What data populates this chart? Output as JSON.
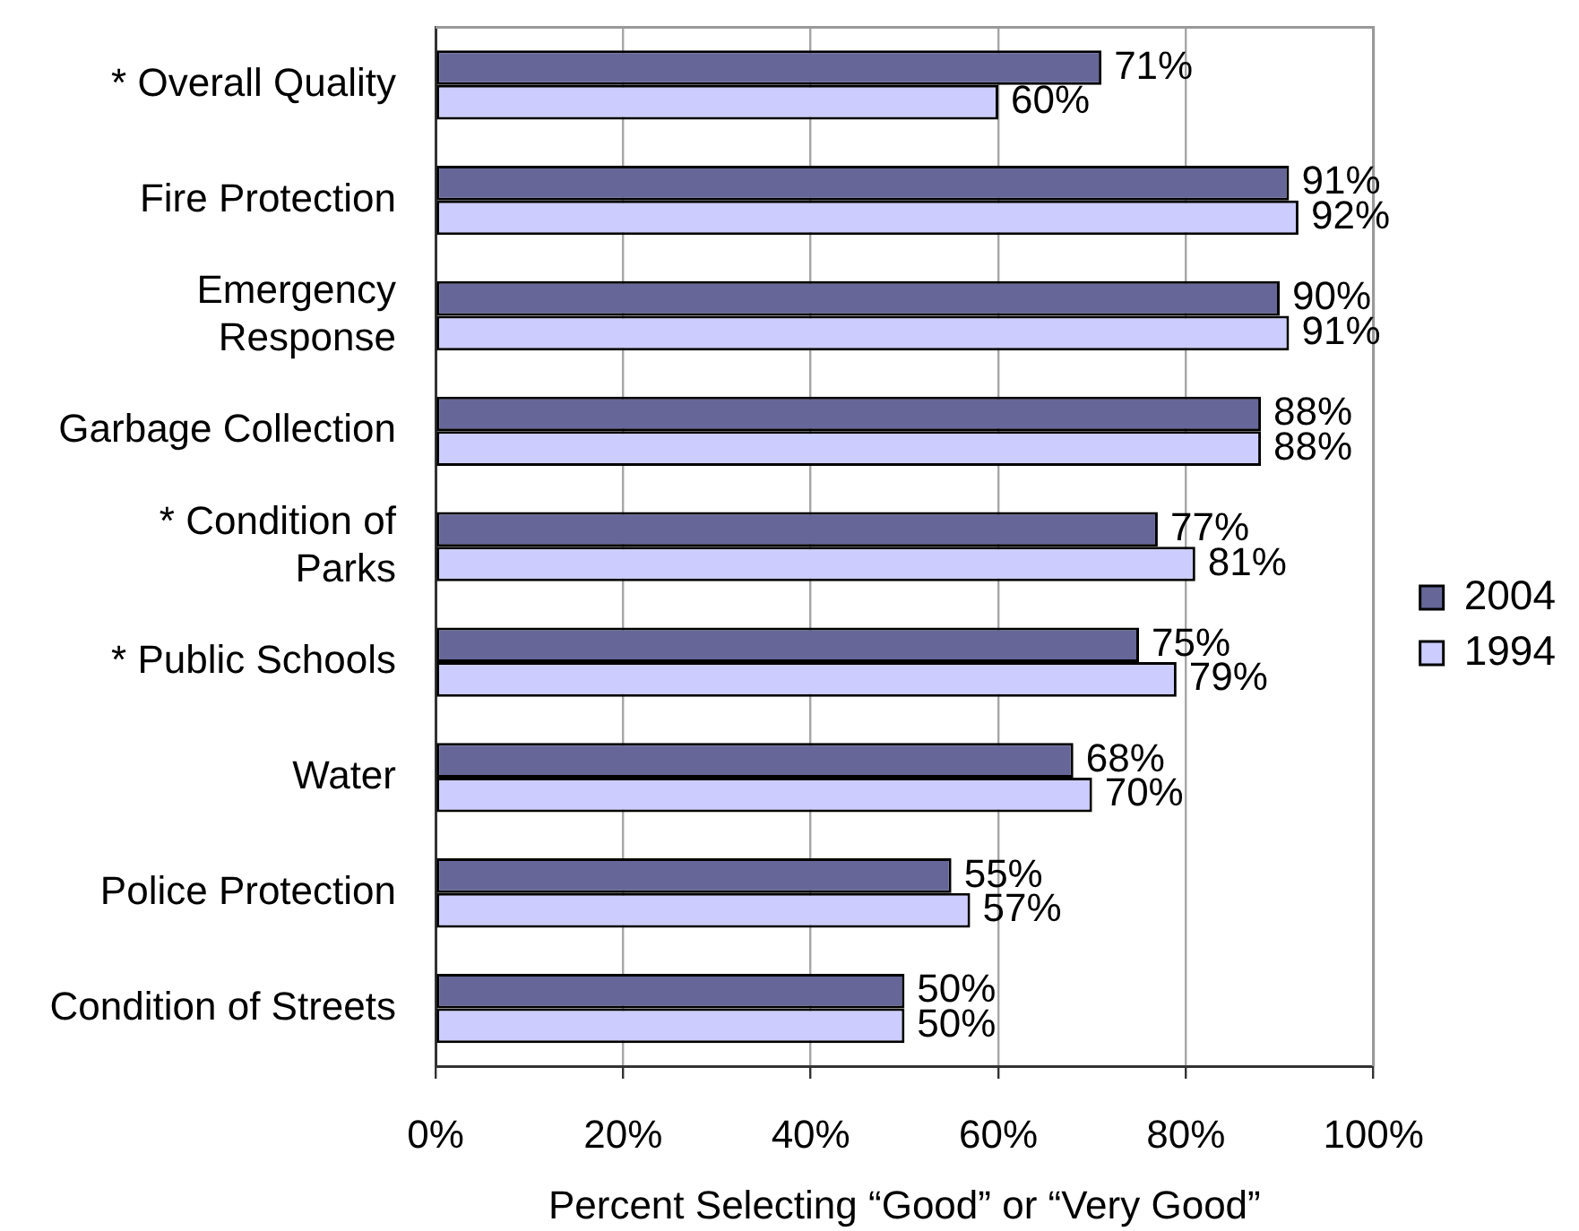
{
  "chart_data": {
    "type": "bar",
    "orientation": "horizontal",
    "xlabel": "Percent Selecting “Good” or “Very Good”",
    "categories": [
      "* Overall Quality",
      "Fire Protection",
      "Emergency\nResponse",
      "Garbage Collection",
      "* Condition of\nParks",
      "* Public Schools",
      "Water",
      "Police Protection",
      "Condition of Streets"
    ],
    "series": [
      {
        "name": "2004",
        "color": "#666699",
        "values": [
          71,
          91,
          90,
          88,
          77,
          75,
          68,
          55,
          50
        ],
        "value_labels": [
          "71%",
          "91%",
          "90%",
          "88%",
          "77%",
          "75%",
          "68%",
          "55%",
          "50%"
        ]
      },
      {
        "name": "1994",
        "color": "#ccccff",
        "values": [
          60,
          92,
          91,
          88,
          81,
          79,
          70,
          57,
          50
        ],
        "value_labels": [
          "60%",
          "92%",
          "91%",
          "88%",
          "81%",
          "79%",
          "70%",
          "57%",
          "50%"
        ]
      }
    ],
    "xlim": [
      0,
      100
    ],
    "xticks": [
      {
        "value": 0,
        "label": "0%"
      },
      {
        "value": 20,
        "label": "20%"
      },
      {
        "value": 40,
        "label": "40%"
      },
      {
        "value": 60,
        "label": "60%"
      },
      {
        "value": 80,
        "label": "80%"
      },
      {
        "value": 100,
        "label": "100%"
      }
    ],
    "grid": "x",
    "legend": "right"
  }
}
